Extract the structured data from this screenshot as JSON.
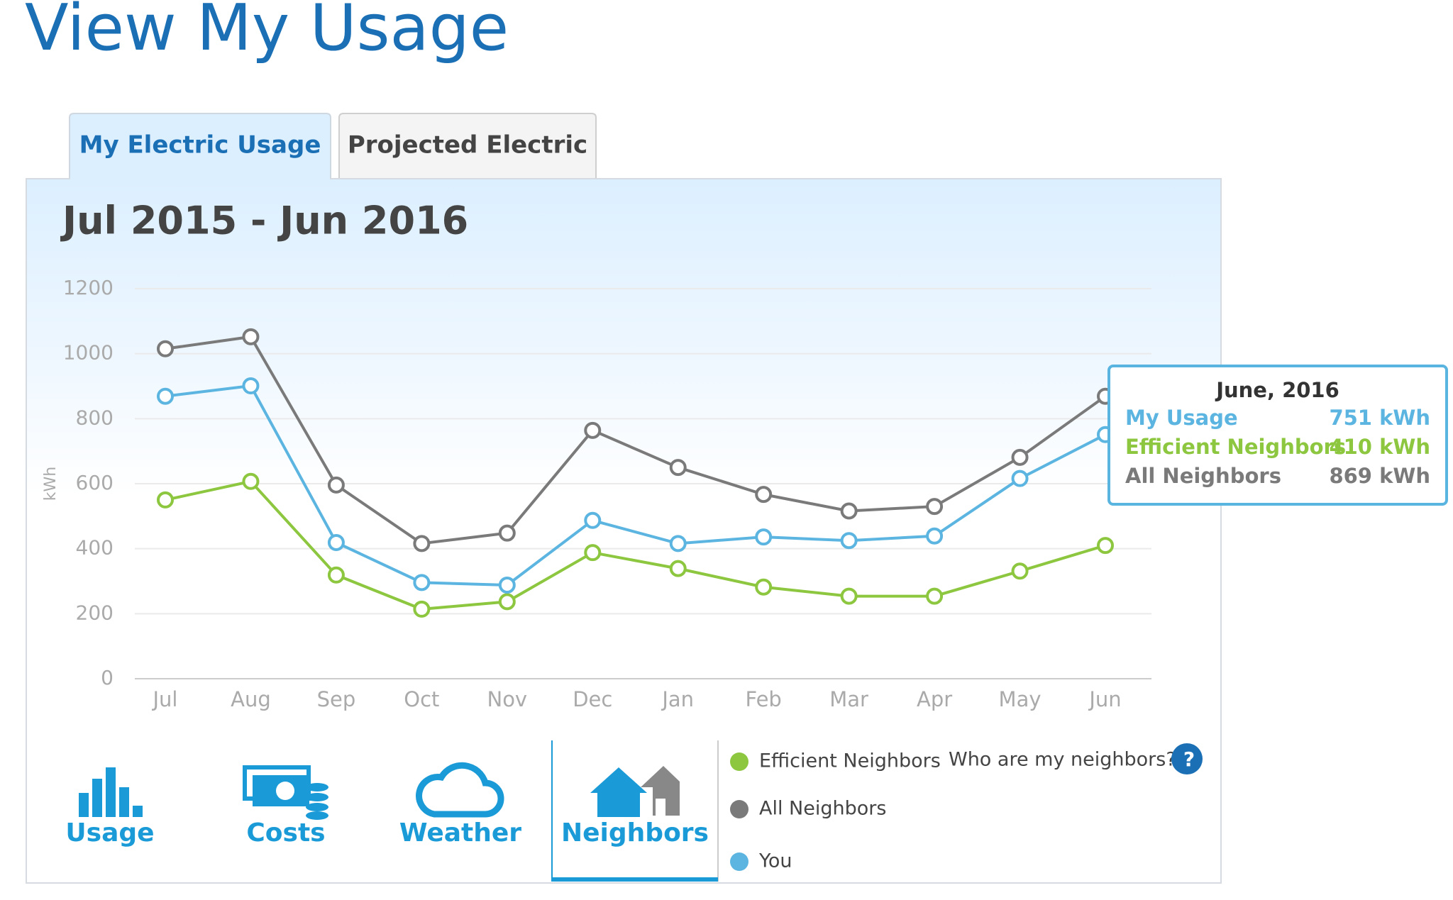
{
  "header": {
    "title": "View My Usage"
  },
  "tabs": [
    "My Electric Usage",
    "Projected Electric"
  ],
  "chart_data": {
    "type": "line",
    "title": "Jul 2015 - Jun 2016",
    "y_label": "kWh",
    "categories": [
      "Jul",
      "Aug",
      "Sep",
      "Oct",
      "Nov",
      "Dec",
      "Jan",
      "Feb",
      "Mar",
      "Apr",
      "May",
      "Jun"
    ],
    "series": [
      {
        "name": "Efficient Neighbors",
        "color": "#8dc63f",
        "values": [
          550,
          607,
          319,
          214,
          237,
          388,
          339,
          282,
          254,
          254,
          331,
          410
        ],
        "value_labels": [
          null,
          null,
          null,
          null,
          null,
          null,
          null,
          null,
          null,
          null,
          null,
          "410 kWh"
        ]
      },
      {
        "name": "All Neighbors",
        "color": "#7a7a7a",
        "values": [
          1015,
          1052,
          596,
          416,
          448,
          764,
          650,
          567,
          516,
          530,
          681,
          869
        ],
        "value_labels": [
          null,
          null,
          null,
          null,
          null,
          null,
          null,
          null,
          null,
          null,
          null,
          "869 kWh"
        ]
      },
      {
        "name": "You",
        "color": "#5bb5e0",
        "values": [
          869,
          901,
          419,
          296,
          288,
          487,
          416,
          436,
          425,
          439,
          616,
          751
        ],
        "value_labels": [
          null,
          null,
          null,
          null,
          null,
          null,
          null,
          null,
          null,
          null,
          null,
          "751 kWh"
        ]
      }
    ],
    "ylim": [
      0,
      1200
    ],
    "yticks": [
      0,
      200,
      400,
      600,
      800,
      1000,
      1200
    ],
    "grid": true,
    "tooltip": {
      "title": "June, 2016",
      "labels": [
        "My Usage",
        "Efficient Neighbors",
        "All Neighbors"
      ]
    }
  },
  "nav": [
    "Usage",
    "Costs",
    "Weather",
    "Neighbors"
  ],
  "neighbors_link": "Who are my neighbors?",
  "help_icon": "?"
}
